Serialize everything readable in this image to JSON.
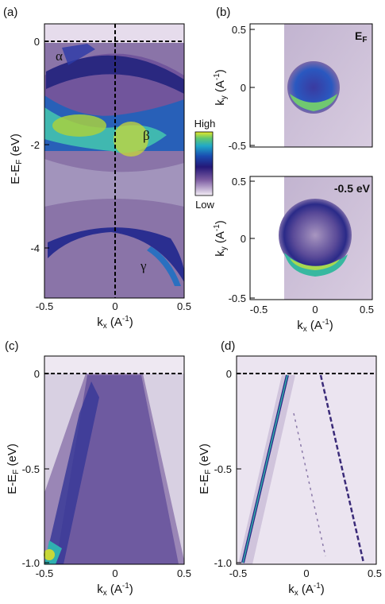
{
  "figure": {
    "panels": [
      {
        "label": "(a)",
        "ylabel": "E-E",
        "ylabel_sub": "F",
        "ylabel_unit": " (eV)",
        "xlabel": "k",
        "xlabel_sub": "x",
        "xlabel_unit": " (A",
        "xlabel_exp": "-1",
        "xlabel_close": ")",
        "xticks": [
          "-0.5",
          "0",
          "0.5"
        ],
        "yticks": [
          "0",
          "-2",
          "-4"
        ],
        "annotations": [
          "α",
          "β",
          "γ"
        ]
      },
      {
        "label": "(b)",
        "ylabel": "k",
        "ylabel_sub": "y",
        "ylabel_unit": " (A",
        "ylabel_exp": "-1",
        "ylabel_close": ")",
        "yticks": [
          "0.5",
          "0",
          "-0.5"
        ],
        "annotation_main": "E",
        "annotation_sub": "F"
      },
      {
        "label": "",
        "ylabel": "k",
        "ylabel_sub": "y",
        "ylabel_unit": " (A",
        "ylabel_exp": "-1",
        "ylabel_close": ")",
        "xlabel": "k",
        "xlabel_sub": "x",
        "xlabel_unit": " (A",
        "xlabel_exp": "-1",
        "xlabel_close": ")",
        "xticks": [
          "-0.5",
          "0",
          "0.5"
        ],
        "yticks": [
          "0.5",
          "0",
          "-0.5"
        ],
        "annotation": "-0.5 eV"
      },
      {
        "label": "(c)",
        "ylabel": "E-E",
        "ylabel_sub": "F",
        "ylabel_unit": " (eV)",
        "xlabel": "k",
        "xlabel_sub": "x",
        "xlabel_unit": " (A",
        "xlabel_exp": "-1",
        "xlabel_close": ")",
        "xticks": [
          "-0.5",
          "0",
          "0.5"
        ],
        "yticks": [
          "0",
          "-0.5",
          "-1.0"
        ]
      },
      {
        "label": "(d)",
        "ylabel": "E-E",
        "ylabel_sub": "F",
        "ylabel_unit": " (eV)",
        "xlabel": "k",
        "xlabel_sub": "x",
        "xlabel_unit": " (A",
        "xlabel_exp": "-1",
        "xlabel_close": ")",
        "xticks": [
          "-0.5",
          "0",
          "0.5"
        ],
        "yticks": [
          "0",
          "-0.5",
          "-1.0"
        ]
      }
    ],
    "colorbar": {
      "high": "High",
      "low": "Low",
      "colors": [
        "#f0eaf4",
        "#6a4a9a",
        "#2a1a78",
        "#1a4aa8",
        "#1aa0c8",
        "#5ac878",
        "#e8e830"
      ]
    }
  }
}
